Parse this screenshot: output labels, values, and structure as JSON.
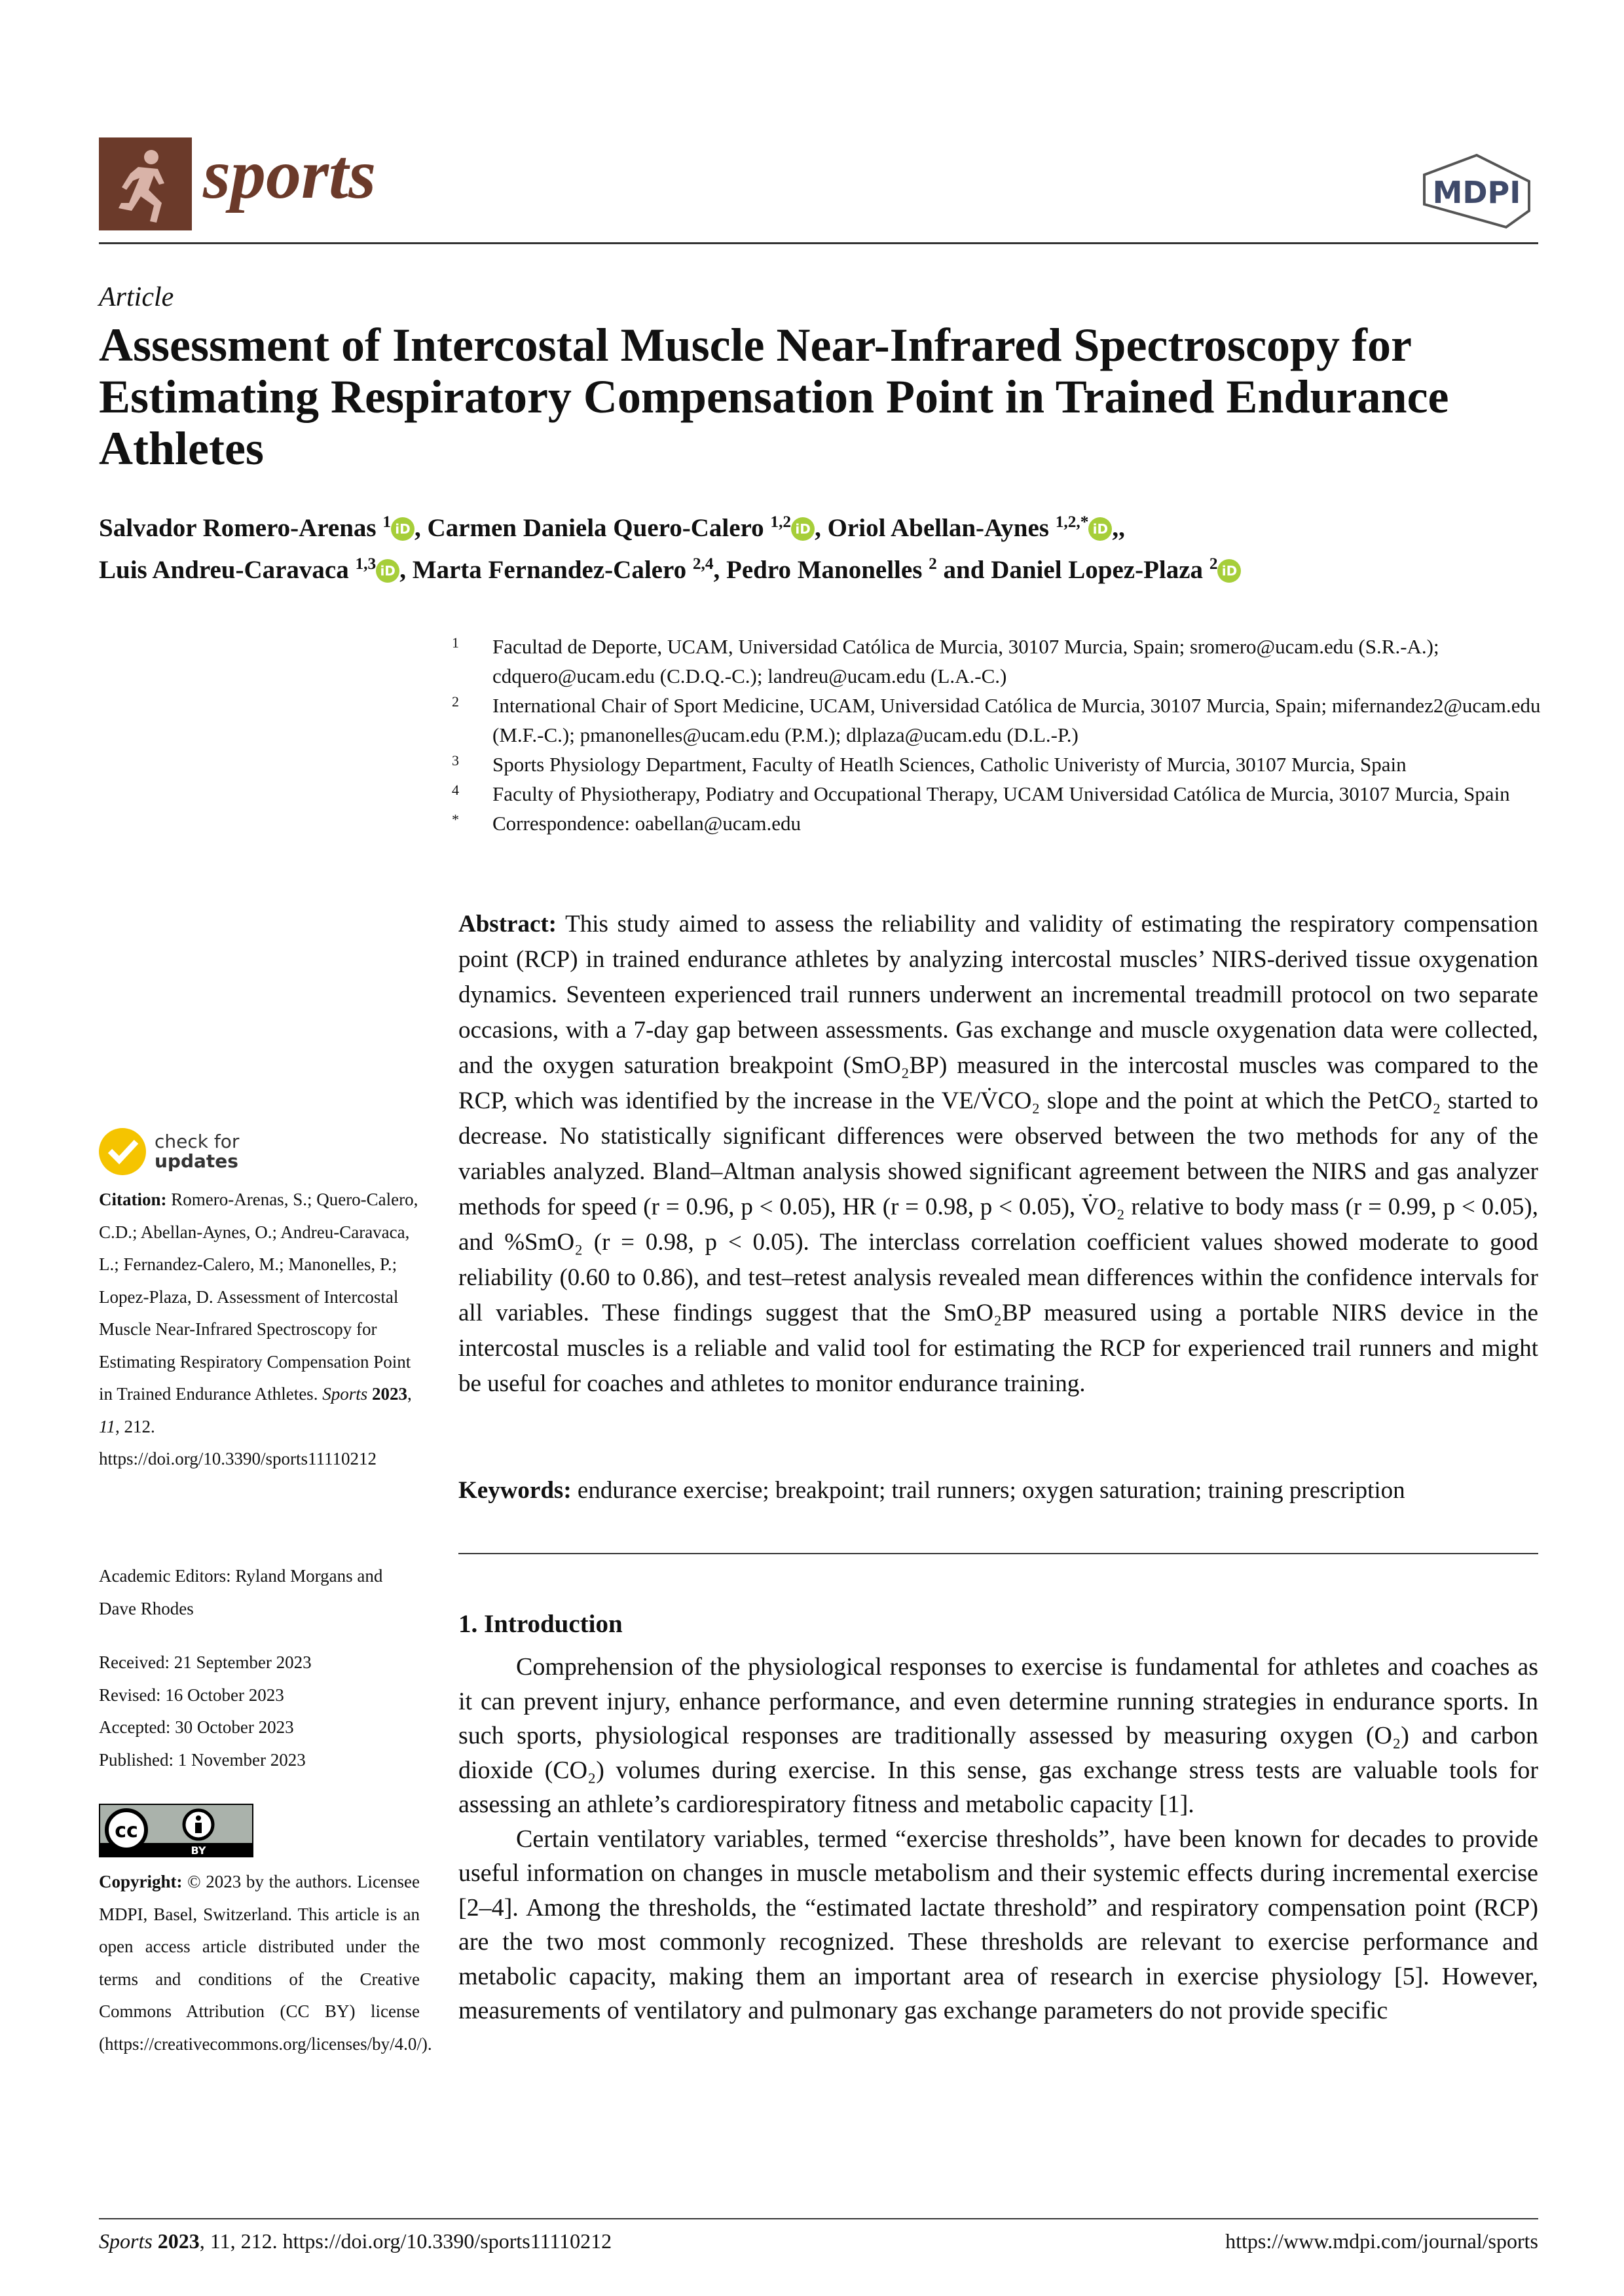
{
  "header": {
    "journal": "sports",
    "publisher": "MDPI"
  },
  "article_type": "Article",
  "title": "Assessment of Intercostal Muscle Near-Infrared Spectroscopy for Estimating Respiratory Compensation Point in Trained Endurance Athletes",
  "authors": [
    {
      "name": "Salvador Romero-Arenas",
      "aff": "1",
      "orcid": true
    },
    {
      "name": "Carmen Daniela Quero-Calero",
      "aff": "1,2",
      "orcid": true
    },
    {
      "name": "Oriol Abellan-Aynes",
      "aff": "1,2,*",
      "orcid": true
    },
    {
      "name": "Luis Andreu-Caravaca",
      "aff": "1,3",
      "orcid": true
    },
    {
      "name": "Marta Fernandez-Calero",
      "aff": "2,4",
      "orcid": false
    },
    {
      "name": "Pedro Manonelles",
      "aff": "2",
      "orcid": false
    },
    {
      "name": "Daniel Lopez-Plaza",
      "aff": "2",
      "orcid": true
    }
  ],
  "orcid_label": "iD",
  "and_word": "and",
  "affiliations": [
    {
      "n": "1",
      "text": "Facultad de Deporte, UCAM, Universidad Católica de Murcia, 30107 Murcia, Spain; sromero@ucam.edu (S.R.-A.); cdquero@ucam.edu (C.D.Q.-C.); landreu@ucam.edu (L.A.-C.)"
    },
    {
      "n": "2",
      "text": "International Chair of Sport Medicine, UCAM, Universidad Católica de Murcia, 30107 Murcia, Spain; mifernandez2@ucam.edu (M.F.-C.); pmanonelles@ucam.edu (P.M.); dlplaza@ucam.edu (D.L.-P.)"
    },
    {
      "n": "3",
      "text": "Sports Physiology Department, Faculty of Heatlh Sciences, Catholic Univeristy of Murcia, 30107 Murcia, Spain"
    },
    {
      "n": "4",
      "text": "Faculty of Physiotherapy, Podiatry and Occupational Therapy, UCAM Universidad Católica de Murcia, 30107 Murcia, Spain"
    },
    {
      "n": "*",
      "text": "Correspondence: oabellan@ucam.edu"
    }
  ],
  "abstract": {
    "label": "Abstract:",
    "text": "This study aimed to assess the reliability and validity of estimating the respiratory compensation point (RCP) in trained endurance athletes by analyzing intercostal muscles’ NIRS-derived tissue oxygenation dynamics. Seventeen experienced trail runners underwent an incremental treadmill protocol on two separate occasions, with a 7-day gap between assessments. Gas exchange and muscle oxygenation data were collected, and the oxygen saturation breakpoint (SmO₂BP) measured in the intercostal muscles was compared to the RCP, which was identified by the increase in the VE/V̇CO₂ slope and the point at which the PetCO₂ started to decrease. No statistically significant differences were observed between the two methods for any of the variables analyzed. Bland–Altman analysis showed significant agreement between the NIRS and gas analyzer methods for speed (r = 0.96, p < 0.05), HR (r = 0.98, p < 0.05), V̇O₂ relative to body mass (r = 0.99, p < 0.05), and %SmO₂ (r = 0.98, p < 0.05). The interclass correlation coefficient values showed moderate to good reliability (0.60 to 0.86), and test–retest analysis revealed mean differences within the confidence intervals for all variables. These findings suggest that the SmO₂BP measured using a portable NIRS device in the intercostal muscles is a reliable and valid tool for estimating the RCP for experienced trail runners and might be useful for coaches and athletes to monitor endurance training."
  },
  "keywords": {
    "label": "Keywords:",
    "text": "endurance exercise; breakpoint; trail runners; oxygen saturation; training prescription"
  },
  "section": {
    "title": "1. Introduction",
    "paragraphs": [
      "Comprehension of the physiological responses to exercise is fundamental for athletes and coaches as it can prevent injury, enhance performance, and even determine running strategies in endurance sports. In such sports, physiological responses are traditionally assessed by measuring oxygen (O₂) and carbon dioxide (CO₂) volumes during exercise. In this sense, gas exchange stress tests are valuable tools for assessing an athlete’s cardiorespiratory fitness and metabolic capacity [1].",
      "Certain ventilatory variables, termed “exercise thresholds”, have been known for decades to provide useful information on changes in muscle metabolism and their systemic effects during incremental exercise [2–4]. Among the thresholds, the “estimated lactate threshold” and respiratory compensation point (RCP) are the two most commonly recognized. These thresholds are relevant to exercise performance and metabolic capacity, making them an important area of research in exercise physiology [5]. However, measurements of ventilatory and pulmonary gas exchange parameters do not provide specific"
    ]
  },
  "sidebar": {
    "check_updates": [
      "check for",
      "updates"
    ],
    "citation_label": "Citation:",
    "citation_text": "Romero-Arenas, S.; Quero-Calero, C.D.; Abellan-Aynes, O.; Andreu-Caravaca, L.; Fernandez-Calero, M.; Manonelles, P.; Lopez-Plaza, D. Assessment of Intercostal Muscle Near-Infrared Spectroscopy for Estimating Respiratory Compensation Point in Trained Endurance Athletes.",
    "citation_journal": "Sports",
    "citation_year": "2023",
    "citation_vol": "11",
    "citation_rest": ", 212. https://doi.org/10.3390/sports11110212",
    "editors": "Academic Editors: Ryland Morgans and Dave Rhodes",
    "dates": [
      "Received: 21 September 2023",
      "Revised: 16 October 2023",
      "Accepted: 30 October 2023",
      "Published: 1 November 2023"
    ],
    "cc_label": "BY",
    "copyright_label": "Copyright:",
    "copyright_text": "© 2023 by the authors. Licensee MDPI, Basel, Switzerland. This article is an open access article distributed under the terms and conditions of the Creative Commons Attribution (CC BY) license (https://creativecommons.org/licenses/by/4.0/)."
  },
  "footer": {
    "journal": "Sports",
    "year": "2023",
    "rest": ", 11, 212. https://doi.org/10.3390/sports11110212",
    "url": "https://www.mdpi.com/journal/sports"
  },
  "colors": {
    "brand": "#6b3a2a",
    "orcid": "#a6ce39",
    "link": "#1a6fb0",
    "check": "#f5c400"
  }
}
